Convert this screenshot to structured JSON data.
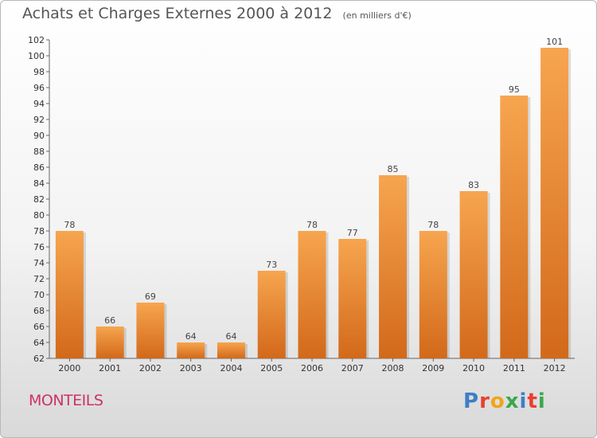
{
  "title": "Achats et Charges Externes 2000 à 2012",
  "subtitle": "(en milliers d'€)",
  "commune": "MONTEILS",
  "logo": "Proxiti",
  "colors": {
    "bar_light": "#f7a54f",
    "bar_dark": "#d2691a",
    "commune_text": "#cc3366",
    "logo_letters": [
      "#3d7fc4",
      "#e8412d",
      "#f2a516",
      "#3aa84c",
      "#3d7fc4",
      "#e8412d",
      "#3aa84c"
    ]
  },
  "chart_data": {
    "type": "bar",
    "title": "Achats et Charges Externes 2000 à 2012",
    "subtitle": "(en milliers d'€)",
    "categories": [
      "2000",
      "2001",
      "2002",
      "2003",
      "2004",
      "2005",
      "2006",
      "2007",
      "2008",
      "2009",
      "2010",
      "2011",
      "2012"
    ],
    "values": [
      78,
      66,
      69,
      64,
      64,
      73,
      78,
      77,
      85,
      78,
      83,
      95,
      101
    ],
    "ylim": [
      62,
      102
    ],
    "yticks": [
      62,
      64,
      66,
      68,
      70,
      72,
      74,
      76,
      78,
      80,
      82,
      84,
      86,
      88,
      90,
      92,
      94,
      96,
      98,
      100,
      102
    ],
    "grid": false,
    "xlabel": "",
    "ylabel": ""
  }
}
